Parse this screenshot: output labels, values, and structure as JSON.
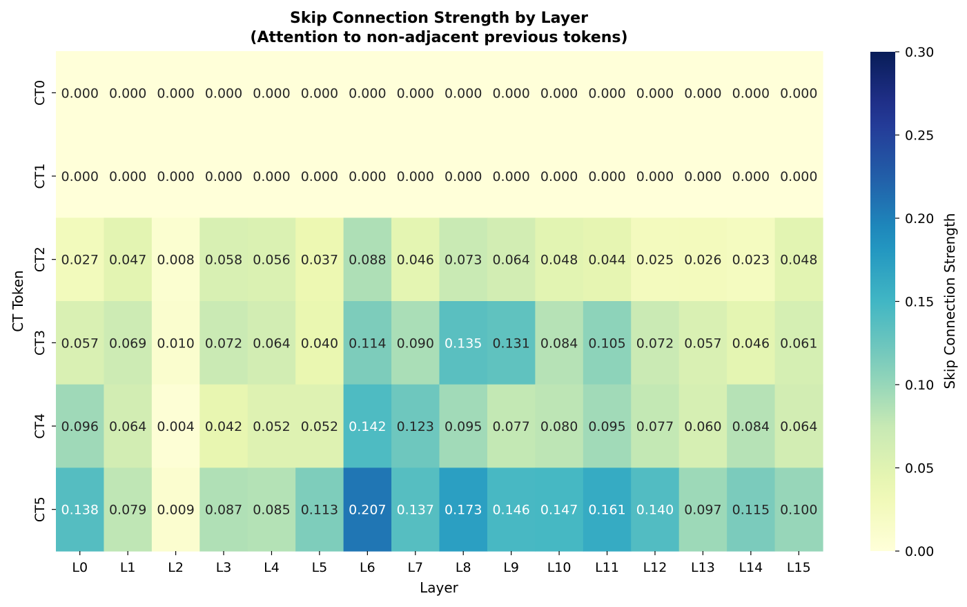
{
  "chart_data": {
    "type": "heatmap",
    "title": "Skip Connection Strength by Layer",
    "subtitle": "(Attention to non-adjacent previous tokens)",
    "xlabel": "Layer",
    "ylabel": "CT Token",
    "x": [
      "L0",
      "L1",
      "L2",
      "L3",
      "L4",
      "L5",
      "L6",
      "L7",
      "L8",
      "L9",
      "L10",
      "L11",
      "L12",
      "L13",
      "L14",
      "L15"
    ],
    "y": [
      "CT0",
      "CT1",
      "CT2",
      "CT3",
      "CT4",
      "CT5"
    ],
    "values": [
      [
        0.0,
        0.0,
        0.0,
        0.0,
        0.0,
        0.0,
        0.0,
        0.0,
        0.0,
        0.0,
        0.0,
        0.0,
        0.0,
        0.0,
        0.0,
        0.0
      ],
      [
        0.0,
        0.0,
        0.0,
        0.0,
        0.0,
        0.0,
        0.0,
        0.0,
        0.0,
        0.0,
        0.0,
        0.0,
        0.0,
        0.0,
        0.0,
        0.0
      ],
      [
        0.027,
        0.047,
        0.008,
        0.058,
        0.056,
        0.037,
        0.088,
        0.046,
        0.073,
        0.064,
        0.048,
        0.044,
        0.025,
        0.026,
        0.023,
        0.048
      ],
      [
        0.057,
        0.069,
        0.01,
        0.072,
        0.064,
        0.04,
        0.114,
        0.09,
        0.135,
        0.131,
        0.084,
        0.105,
        0.072,
        0.057,
        0.046,
        0.061
      ],
      [
        0.096,
        0.064,
        0.004,
        0.042,
        0.052,
        0.052,
        0.142,
        0.123,
        0.095,
        0.077,
        0.08,
        0.095,
        0.077,
        0.06,
        0.084,
        0.064
      ],
      [
        0.138,
        0.079,
        0.009,
        0.087,
        0.085,
        0.113,
        0.207,
        0.137,
        0.173,
        0.146,
        0.147,
        0.161,
        0.14,
        0.097,
        0.115,
        0.1
      ]
    ],
    "value_format": "3 decimals",
    "colormap": "YlGnBu",
    "colorbar": {
      "label": "Skip Connection Strength",
      "range": [
        0.0,
        0.3
      ],
      "ticks": [
        "0.00",
        "0.05",
        "0.10",
        "0.15",
        "0.20",
        "0.25",
        "0.30"
      ]
    },
    "colors": {
      "low": "#ffffd9",
      "high": "#081d58",
      "text_dark": "#262626",
      "text_light": "#ffffff"
    }
  }
}
